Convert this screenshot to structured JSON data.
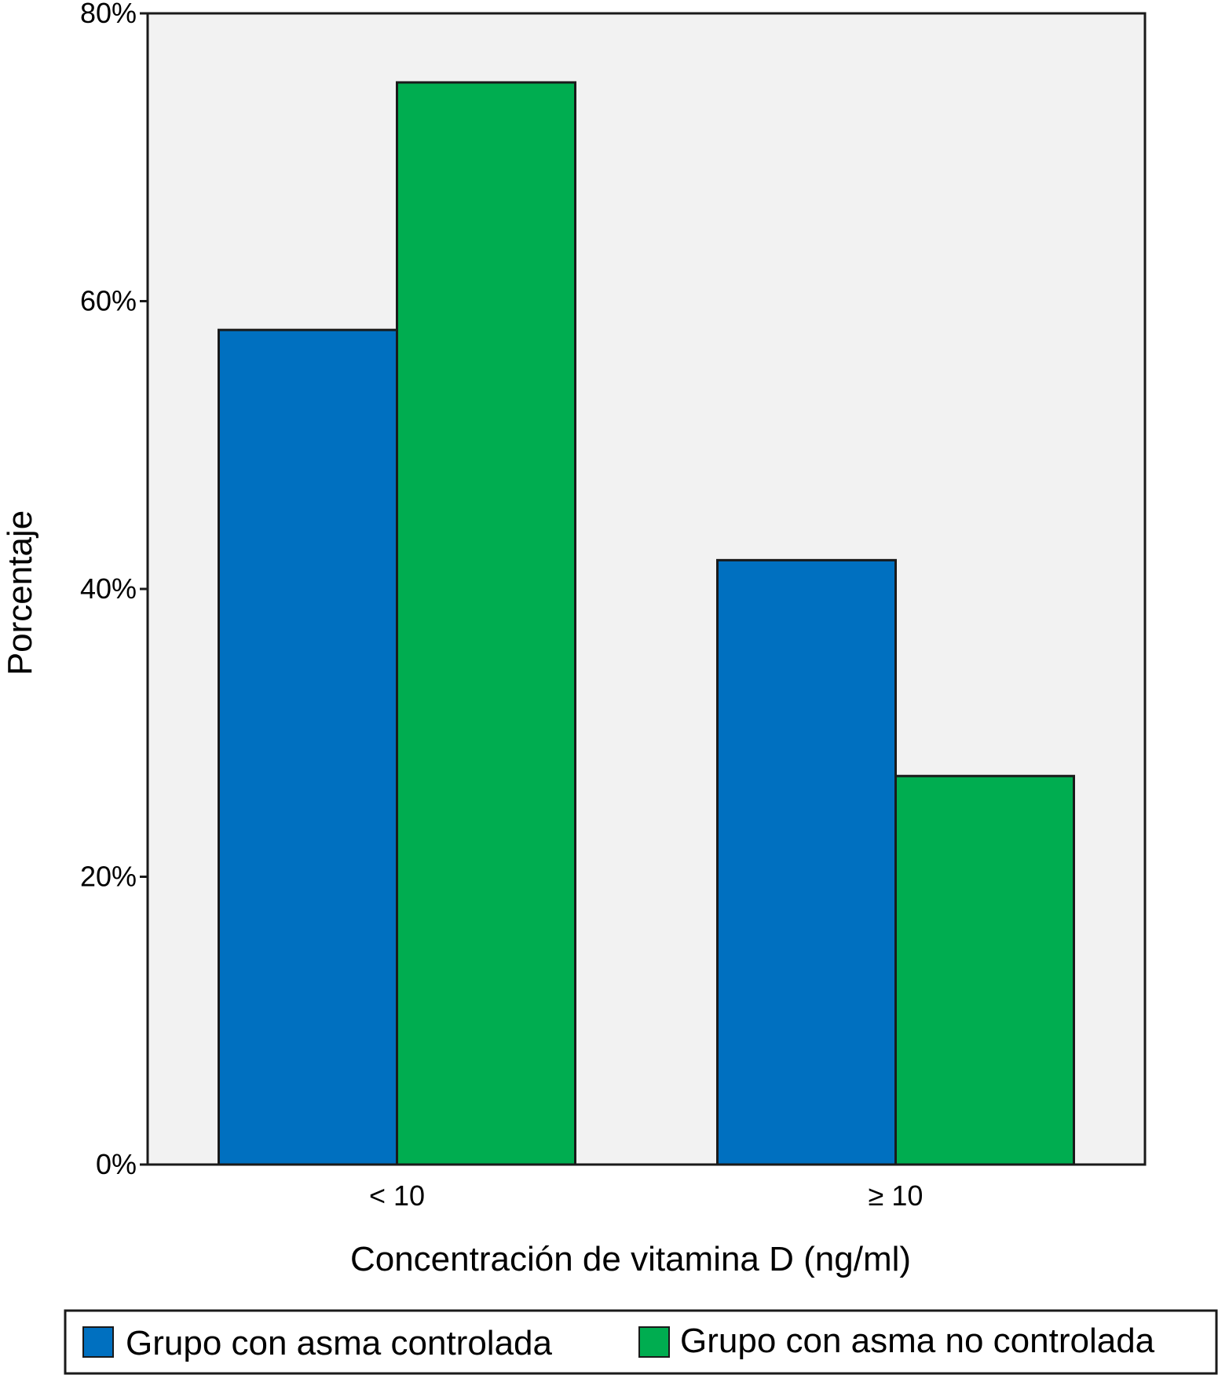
{
  "chart_data": {
    "type": "bar",
    "title": "",
    "xlabel": "Concentración de vitamina D (ng/ml)",
    "ylabel": "Porcentaje",
    "categories": [
      "< 10",
      "≥ 10"
    ],
    "series": [
      {
        "name": "Grupo con asma controlada",
        "values": [
          58,
          42
        ],
        "color": "#0070c0"
      },
      {
        "name": "Grupo con asma no controlada",
        "values": [
          75.2,
          27
        ],
        "color": "#00ad50"
      }
    ],
    "ylim": [
      0,
      80
    ],
    "yticks": [
      0,
      20,
      40,
      60,
      80
    ],
    "ytick_labels": [
      "0%",
      "20%",
      "40%",
      "60%",
      "80%"
    ],
    "grid": false,
    "legend_position": "bottom",
    "plot_background": "#f2f2f2",
    "bar_outline": "#1a1a1a"
  }
}
